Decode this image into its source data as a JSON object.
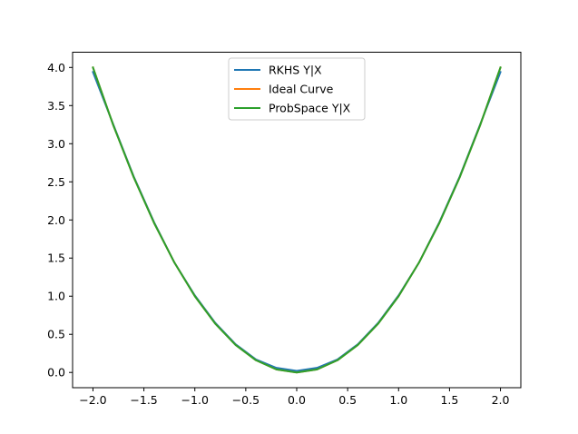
{
  "chart_data": {
    "type": "line",
    "title": "",
    "xlabel": "",
    "ylabel": "",
    "xlim": [
      -2.2,
      2.2
    ],
    "ylim": [
      -0.2,
      4.2
    ],
    "grid": false,
    "legend_placement": "upper center",
    "x_ticks": [
      -2.0,
      -1.5,
      -1.0,
      -0.5,
      0.0,
      0.5,
      1.0,
      1.5,
      2.0
    ],
    "x_tick_labels": [
      "−2.0",
      "−1.5",
      "−1.0",
      "−0.5",
      "0.0",
      "0.5",
      "1.0",
      "1.5",
      "2.0"
    ],
    "y_ticks": [
      0.0,
      0.5,
      1.0,
      1.5,
      2.0,
      2.5,
      3.0,
      3.5,
      4.0
    ],
    "y_tick_labels": [
      "0.0",
      "0.5",
      "1.0",
      "1.5",
      "2.0",
      "2.5",
      "3.0",
      "3.5",
      "4.0"
    ],
    "x": [
      -2.0,
      -1.8,
      -1.6,
      -1.4,
      -1.2,
      -1.0,
      -0.8,
      -0.6,
      -0.4,
      -0.2,
      0.0,
      0.2,
      0.4,
      0.6,
      0.8,
      1.0,
      1.2,
      1.4,
      1.6,
      1.8,
      2.0
    ],
    "series": [
      {
        "name": "RKHS Y|X",
        "color": "#1f77b4",
        "values": [
          3.94,
          3.25,
          2.57,
          1.97,
          1.44,
          1.01,
          0.65,
          0.37,
          0.17,
          0.06,
          0.02,
          0.06,
          0.17,
          0.37,
          0.65,
          1.01,
          1.44,
          1.97,
          2.57,
          3.25,
          3.94
        ]
      },
      {
        "name": "Ideal Curve",
        "color": "#ff7f0e",
        "values": [
          4.0,
          3.24,
          2.56,
          1.96,
          1.44,
          1.0,
          0.64,
          0.36,
          0.16,
          0.04,
          0.0,
          0.04,
          0.16,
          0.36,
          0.64,
          1.0,
          1.44,
          1.96,
          2.56,
          3.24,
          4.0
        ]
      },
      {
        "name": "ProbSpace Y|X",
        "color": "#2ca02c",
        "values": [
          4.0,
          3.24,
          2.56,
          1.96,
          1.44,
          1.0,
          0.64,
          0.36,
          0.16,
          0.04,
          0.0,
          0.04,
          0.16,
          0.36,
          0.64,
          1.0,
          1.44,
          1.96,
          2.56,
          3.24,
          4.0
        ]
      }
    ]
  }
}
